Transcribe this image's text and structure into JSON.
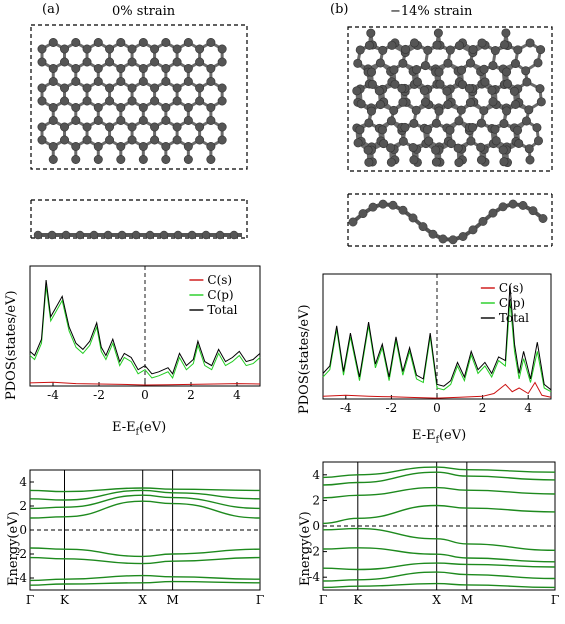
{
  "panels": [
    {
      "label": "(a)",
      "strain": "0% strain"
    },
    {
      "label": "(b)",
      "strain": "−14% strain"
    }
  ],
  "legend": [
    "C(s)",
    "C(p)",
    "Total"
  ],
  "colors": {
    "cs": "#cc1111",
    "cp": "#22cc22",
    "total": "#000000",
    "bands": "#1e8a1e",
    "atom": "#555555"
  },
  "chart_data": [
    {
      "type": "line",
      "title": "",
      "xlabel_main": "E-E",
      "xlabel_sub": "f",
      "xlabel_unit": "(eV)",
      "ylabel": "PDOS(states/eV)",
      "xlim": [
        -5,
        5
      ],
      "xticks": [
        -4,
        -2,
        0,
        2,
        4
      ],
      "series": [
        {
          "name": "C(s)",
          "x": [
            -5,
            -4,
            -3,
            -2,
            -1,
            0,
            1,
            2,
            3,
            4,
            5
          ],
          "y": [
            0.15,
            0.18,
            0.12,
            0.1,
            0.08,
            0.05,
            0.06,
            0.08,
            0.1,
            0.12,
            0.1
          ]
        },
        {
          "name": "C(p)",
          "x": [
            -5,
            -4.8,
            -4.5,
            -4.3,
            -4.1,
            -3.9,
            -3.6,
            -3.3,
            -3,
            -2.7,
            -2.4,
            -2.1,
            -1.9,
            -1.7,
            -1.4,
            -1.1,
            -0.9,
            -0.6,
            -0.3,
            0,
            0.3,
            0.6,
            1,
            1.2,
            1.5,
            1.8,
            2.1,
            2.3,
            2.6,
            2.9,
            3.2,
            3.5,
            3.8,
            4.1,
            4.4,
            4.7,
            5
          ],
          "y": [
            1.5,
            1.3,
            2.1,
            4.9,
            3.2,
            3.6,
            4.2,
            2.7,
            1.9,
            1.6,
            2.0,
            2.9,
            1.7,
            1.3,
            2.1,
            1.0,
            1.4,
            1.2,
            0.6,
            0.8,
            0.4,
            0.5,
            0.7,
            0.4,
            1.4,
            0.8,
            1.1,
            2.0,
            1.0,
            0.8,
            1.6,
            1.0,
            1.2,
            1.5,
            1.0,
            1.1,
            1.4
          ]
        },
        {
          "name": "Total",
          "x": [
            -5,
            -4.8,
            -4.5,
            -4.3,
            -4.1,
            -3.9,
            -3.6,
            -3.3,
            -3,
            -2.7,
            -2.4,
            -2.1,
            -1.9,
            -1.7,
            -1.4,
            -1.1,
            -0.9,
            -0.6,
            -0.3,
            0,
            0.3,
            0.6,
            1,
            1.2,
            1.5,
            1.8,
            2.1,
            2.3,
            2.6,
            2.9,
            3.2,
            3.5,
            3.8,
            4.1,
            4.4,
            4.7,
            5
          ],
          "y": [
            1.7,
            1.5,
            2.3,
            5.2,
            3.4,
            3.8,
            4.4,
            2.9,
            2.1,
            1.8,
            2.2,
            3.1,
            1.9,
            1.5,
            2.3,
            1.2,
            1.6,
            1.4,
            0.8,
            1.0,
            0.6,
            0.7,
            0.9,
            0.6,
            1.6,
            1.0,
            1.3,
            2.2,
            1.2,
            1.0,
            1.8,
            1.2,
            1.4,
            1.7,
            1.2,
            1.3,
            1.6
          ]
        }
      ]
    },
    {
      "type": "line",
      "title": "",
      "xlabel_main": "E-E",
      "xlabel_sub": "f",
      "xlabel_unit": "(eV)",
      "ylabel": "PDOS(states/eV)",
      "xlim": [
        -5,
        5
      ],
      "xticks": [
        -4,
        -2,
        0,
        2,
        4
      ],
      "series": [
        {
          "name": "C(s)",
          "x": [
            -5,
            -4,
            -3,
            -2,
            -1,
            0,
            1,
            2,
            2.5,
            3,
            3.3,
            3.6,
            4,
            4.3,
            4.6,
            5
          ],
          "y": [
            0.15,
            0.2,
            0.15,
            0.12,
            0.08,
            0.05,
            0.1,
            0.15,
            0.3,
            0.8,
            0.4,
            0.6,
            0.3,
            0.9,
            0.2,
            0.1
          ]
        },
        {
          "name": "C(p)",
          "x": [
            -5,
            -4.7,
            -4.4,
            -4.1,
            -3.8,
            -3.4,
            -3,
            -2.7,
            -2.4,
            -2.1,
            -1.8,
            -1.5,
            -1.2,
            -0.9,
            -0.6,
            -0.3,
            0,
            0.3,
            0.6,
            0.9,
            1.2,
            1.5,
            1.8,
            2.1,
            2.4,
            2.7,
            3,
            3.2,
            3.4,
            3.6,
            3.8,
            4.1,
            4.4,
            4.7,
            5
          ],
          "y": [
            1.2,
            1.6,
            3.8,
            1.3,
            3.4,
            1.0,
            4.0,
            1.7,
            2.8,
            1.0,
            3.2,
            1.3,
            2.6,
            1.1,
            0.9,
            3.4,
            0.6,
            0.5,
            0.8,
            1.8,
            1.0,
            2.4,
            1.4,
            1.8,
            1.2,
            2.1,
            1.8,
            5.4,
            2.6,
            1.1,
            2.2,
            0.9,
            2.6,
            0.6,
            0.4
          ]
        },
        {
          "name": "Total",
          "x": [
            -5,
            -4.7,
            -4.4,
            -4.1,
            -3.8,
            -3.4,
            -3,
            -2.7,
            -2.4,
            -2.1,
            -1.8,
            -1.5,
            -1.2,
            -0.9,
            -0.6,
            -0.3,
            0,
            0.3,
            0.6,
            0.9,
            1.2,
            1.5,
            1.8,
            2.1,
            2.4,
            2.7,
            3,
            3.2,
            3.4,
            3.6,
            3.8,
            4.1,
            4.4,
            4.7,
            5
          ],
          "y": [
            1.4,
            1.8,
            4.0,
            1.5,
            3.6,
            1.2,
            4.2,
            1.9,
            3.0,
            1.2,
            3.4,
            1.5,
            2.8,
            1.3,
            1.1,
            3.6,
            0.8,
            0.7,
            1.0,
            2.0,
            1.2,
            2.6,
            1.6,
            2.0,
            1.4,
            2.3,
            2.1,
            6.2,
            3.0,
            1.4,
            2.6,
            1.1,
            3.1,
            0.8,
            0.5
          ]
        }
      ]
    },
    {
      "type": "line",
      "title": "",
      "ylabel": "Energy(eV)",
      "ylim": [
        -5,
        5
      ],
      "yticks": [
        -4,
        -2,
        0,
        2,
        4
      ],
      "kpoints": [
        "Γ",
        "K",
        "X",
        "M",
        "Γ"
      ],
      "kpos": [
        0,
        0.15,
        0.49,
        0.62,
        1.0
      ],
      "bands": [
        [
          -4.6,
          -4.5,
          -4.4,
          -4.3,
          -4.4
        ],
        [
          -4.2,
          -4.1,
          -3.8,
          -3.9,
          -4.1
        ],
        [
          -2.3,
          -2.4,
          -2.8,
          -2.6,
          -2.3
        ],
        [
          -1.5,
          -1.6,
          -2.2,
          -2.0,
          -1.6
        ],
        [
          1.0,
          1.1,
          2.4,
          2.2,
          1.0
        ],
        [
          1.8,
          1.9,
          2.9,
          2.7,
          1.8
        ],
        [
          2.6,
          2.5,
          3.3,
          3.1,
          2.6
        ],
        [
          3.3,
          3.2,
          3.5,
          3.4,
          3.3
        ]
      ]
    },
    {
      "type": "line",
      "title": "",
      "ylabel": "Energy(eV)",
      "ylim": [
        -5,
        5
      ],
      "yticks": [
        -4,
        -2,
        0,
        2,
        4
      ],
      "kpoints": [
        "Γ",
        "K",
        "X",
        "M",
        "Γ"
      ],
      "kpos": [
        0,
        0.15,
        0.49,
        0.62,
        1.0
      ],
      "bands": [
        [
          -4.8,
          -4.7,
          -4.5,
          -4.6,
          -4.8
        ],
        [
          -4.3,
          -4.2,
          -3.6,
          -3.8,
          -4.1
        ],
        [
          -3.3,
          -3.4,
          -2.9,
          -3.0,
          -3.2
        ],
        [
          -1.8,
          -1.7,
          -2.2,
          -2.5,
          -2.8
        ],
        [
          -0.3,
          -0.2,
          -1.0,
          -1.4,
          -1.9
        ],
        [
          0.2,
          0.6,
          1.6,
          1.4,
          1.1
        ],
        [
          2.2,
          2.4,
          3.0,
          2.8,
          2.5
        ],
        [
          3.2,
          3.4,
          4.2,
          3.9,
          3.6
        ],
        [
          3.8,
          4.0,
          4.6,
          4.4,
          4.2
        ]
      ]
    }
  ]
}
